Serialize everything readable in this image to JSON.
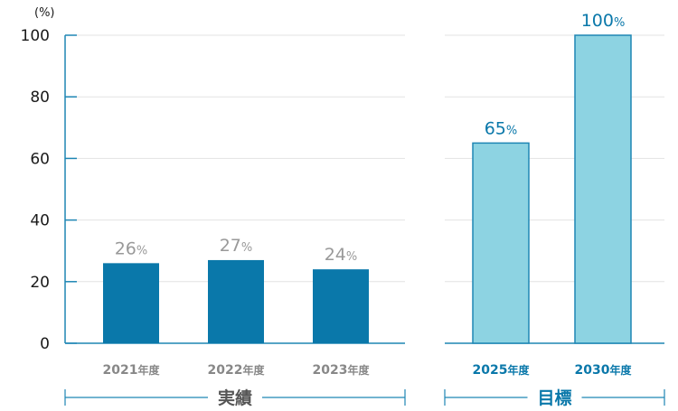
{
  "chart_data": {
    "type": "bar",
    "unit_label": "(%)",
    "ylim": [
      0,
      100
    ],
    "yticks": [
      "0",
      "20",
      "40",
      "60",
      "80",
      "100"
    ],
    "grid": true,
    "value_suffix": "%",
    "groups": [
      {
        "label": "実績",
        "color": "#0a78aa",
        "bars": [
          {
            "category": "2021",
            "category_suffix": "年度",
            "value": 26
          },
          {
            "category": "2022",
            "category_suffix": "年度",
            "value": 27
          },
          {
            "category": "2023",
            "category_suffix": "年度",
            "value": 24
          }
        ]
      },
      {
        "label": "目標",
        "color": "#8dd3e2",
        "border": "#1e86b4",
        "bars": [
          {
            "category": "2025",
            "category_suffix": "年度",
            "value": 65
          },
          {
            "category": "2030",
            "category_suffix": "年度",
            "value": 100
          }
        ]
      }
    ]
  }
}
